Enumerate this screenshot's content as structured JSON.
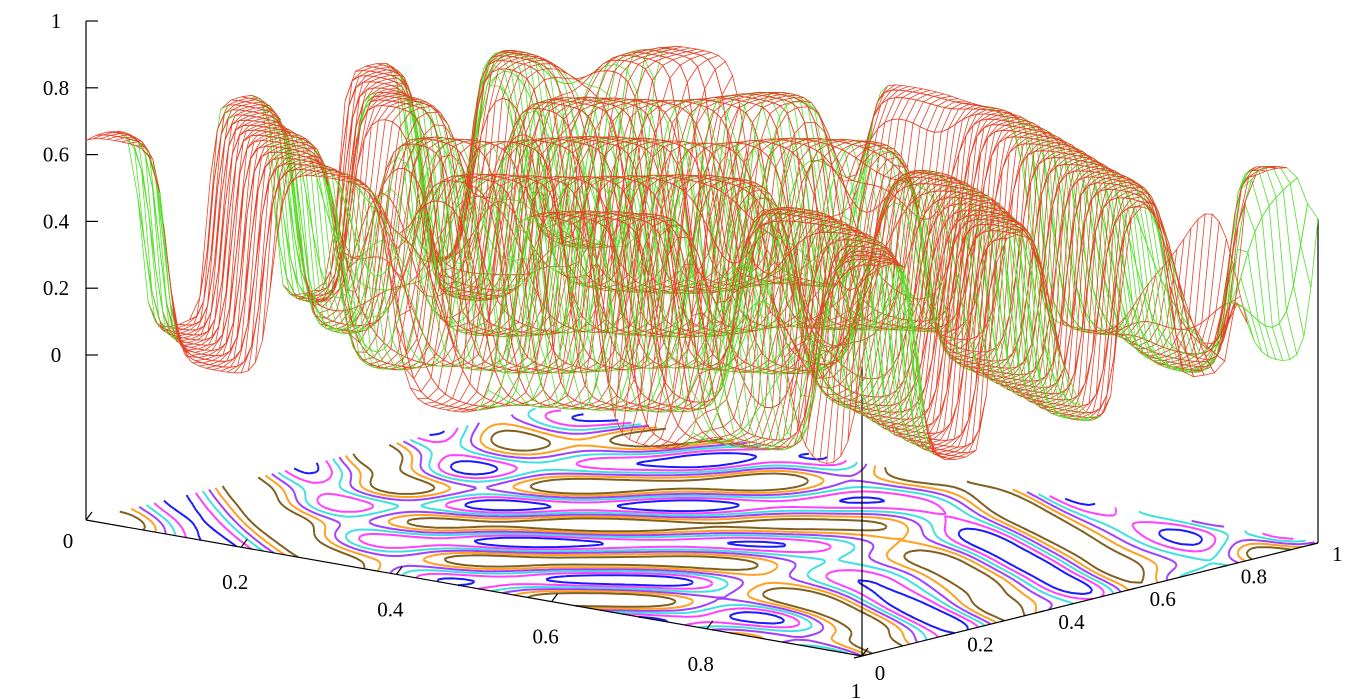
{
  "chart_data": {
    "type": "surface3d",
    "title": "",
    "xlabel": "",
    "ylabel": "",
    "zlabel": "",
    "xlim": [
      0,
      1
    ],
    "ylim": [
      0,
      1
    ],
    "zlim": [
      0,
      1
    ],
    "x_ticks": [
      {
        "value": 0,
        "label": "0"
      },
      {
        "value": 0.2,
        "label": "0.2"
      },
      {
        "value": 0.4,
        "label": "0.4"
      },
      {
        "value": 0.6,
        "label": "0.6"
      },
      {
        "value": 0.8,
        "label": "0.8"
      },
      {
        "value": 1,
        "label": "1"
      }
    ],
    "y_ticks": [
      {
        "value": 0,
        "label": "0"
      },
      {
        "value": 0.2,
        "label": "0.2"
      },
      {
        "value": 0.4,
        "label": "0.4"
      },
      {
        "value": 0.6,
        "label": "0.6"
      },
      {
        "value": 0.8,
        "label": "0.8"
      },
      {
        "value": 1,
        "label": "1"
      }
    ],
    "z_ticks": [
      {
        "value": 0,
        "label": "0"
      },
      {
        "value": 0.2,
        "label": "0.2"
      },
      {
        "value": 0.4,
        "label": "0.4"
      },
      {
        "value": 0.6,
        "label": "0.6"
      },
      {
        "value": 0.8,
        "label": "0.8"
      },
      {
        "value": 1,
        "label": "1"
      }
    ],
    "surface": {
      "style": "wireframe mesh",
      "top_color": "#e8432a",
      "bottom_color": "#55e02a",
      "value_range": [
        0.02,
        0.66
      ],
      "pattern": "labyrinthine stripe pattern (Turing-like), about 7 stripes across the domain, plateaus near 0.6"
    },
    "contours": {
      "on_base": true,
      "colors": [
        "#1a1aff",
        "#ff40ff",
        "#40e0e0",
        "#a040ff",
        "#ffa020",
        "#806020"
      ]
    },
    "grid": false,
    "legend": "none"
  }
}
